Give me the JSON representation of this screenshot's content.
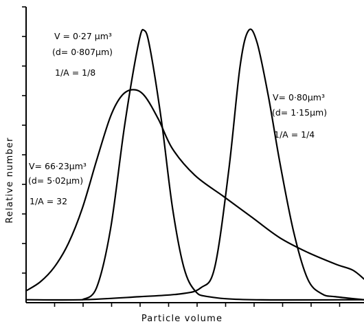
{
  "chart_data": {
    "type": "line",
    "title": "",
    "xlabel": "Particle volume",
    "ylabel": "Relative number",
    "grid": false,
    "legend": "none",
    "series": [
      {
        "points": [
          [
            0,
            0.04
          ],
          [
            0.5,
            0.07
          ],
          [
            1,
            0.12
          ],
          [
            1.5,
            0.2
          ],
          [
            2,
            0.32
          ],
          [
            2.5,
            0.48
          ],
          [
            3,
            0.63
          ],
          [
            3.4,
            0.7
          ],
          [
            3.8,
            0.72
          ],
          [
            4.2,
            0.7
          ],
          [
            4.7,
            0.62
          ],
          [
            5.2,
            0.52
          ],
          [
            6,
            0.43
          ],
          [
            7,
            0.36
          ],
          [
            8,
            0.29
          ],
          [
            9,
            0.22
          ],
          [
            10,
            0.17
          ],
          [
            11,
            0.13
          ],
          [
            11.6,
            0.11
          ],
          [
            12,
            0.08
          ]
        ],
        "annotation": {
          "volume_line": "V= 66·23µm³",
          "diameter_line": "(d= 5·02µm)",
          "ratio_label": "1/A = 32"
        }
      },
      {
        "points": [
          [
            2,
            0.01
          ],
          [
            2.5,
            0.05
          ],
          [
            3,
            0.25
          ],
          [
            3.5,
            0.6
          ],
          [
            4,
            0.88
          ],
          [
            4.2,
            0.92
          ],
          [
            4.4,
            0.86
          ],
          [
            4.8,
            0.62
          ],
          [
            5.2,
            0.32
          ],
          [
            5.6,
            0.12
          ],
          [
            6,
            0.04
          ],
          [
            6.5,
            0.02
          ],
          [
            8,
            0.01
          ],
          [
            12,
            0.01
          ]
        ],
        "annotation": {
          "volume_line": "V = 0·27 µm³",
          "diameter_line": "(d= 0·807µm)",
          "ratio_label": "1/A = 1/8"
        }
      },
      {
        "points": [
          [
            0,
            0.01
          ],
          [
            2,
            0.01
          ],
          [
            4,
            0.02
          ],
          [
            5.5,
            0.03
          ],
          [
            6.2,
            0.05
          ],
          [
            6.7,
            0.12
          ],
          [
            7.2,
            0.45
          ],
          [
            7.6,
            0.8
          ],
          [
            7.9,
            0.92
          ],
          [
            8.2,
            0.88
          ],
          [
            8.6,
            0.7
          ],
          [
            9,
            0.48
          ],
          [
            9.5,
            0.24
          ],
          [
            10,
            0.08
          ],
          [
            10.5,
            0.03
          ],
          [
            11,
            0.02
          ],
          [
            12,
            0.01
          ]
        ],
        "annotation": {
          "volume_line": "V= 0·80µm³",
          "diameter_line": "(d= 1·15µm)",
          "ratio_label": "1/A = 1/4"
        }
      }
    ]
  }
}
